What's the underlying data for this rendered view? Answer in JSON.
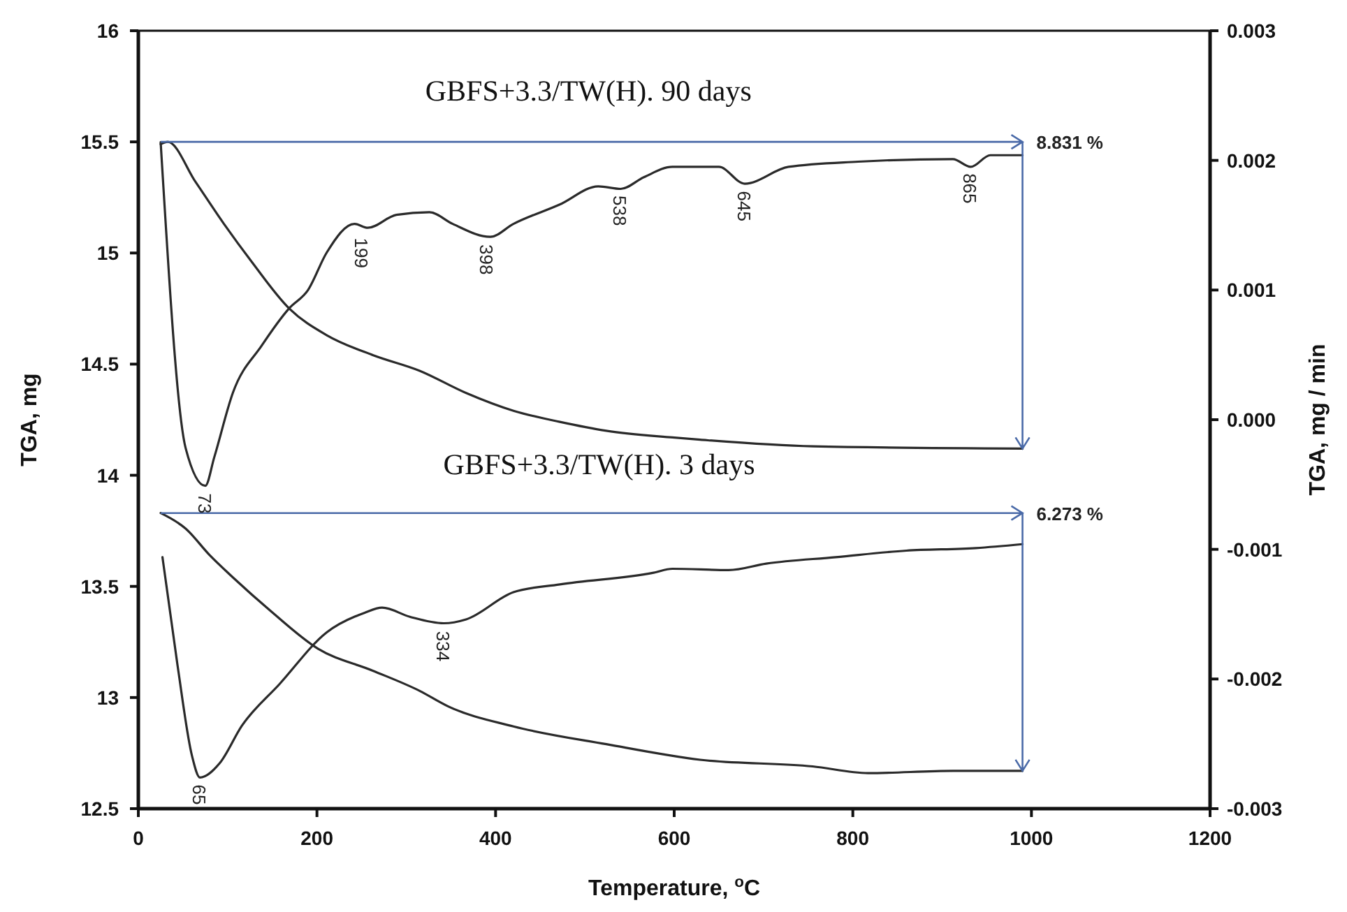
{
  "chart_data": {
    "type": "line",
    "xlabel": "Temperature, $^{o}$C",
    "ylabel": "TGA, mg",
    "y2label": "TGA, mg / min",
    "xlim": [
      0,
      1200
    ],
    "xticks": [
      0,
      200,
      400,
      600,
      800,
      1000,
      1200
    ],
    "ylim": [
      12.5,
      16
    ],
    "yticks": [
      {
        "value": 12.5,
        "label": "12.5"
      },
      {
        "value": 13,
        "label": "13"
      },
      {
        "value": 13.5,
        "label": "13.5"
      },
      {
        "value": 14,
        "label": "14"
      },
      {
        "value": 14.5,
        "label": "14.5"
      },
      {
        "value": 15,
        "label": "15"
      },
      {
        "value": 15.5,
        "label": "15.5"
      },
      {
        "value": 16,
        "label": "16"
      }
    ],
    "y2lim": [
      -0.003,
      0.003
    ],
    "y2ticks": [
      {
        "value": -0.003,
        "label": "-0.003"
      },
      {
        "value": -0.002,
        "label": "-0.002"
      },
      {
        "value": -0.001,
        "label": "-0.001"
      },
      {
        "value": 0,
        "label": "0.000"
      },
      {
        "value": 0.001,
        "label": "0.001"
      },
      {
        "value": 0.002,
        "label": "0.002"
      },
      {
        "value": 0.003,
        "label": "0.003"
      }
    ],
    "series": [
      {
        "color": "#2a2a2a",
        "x": [
          25,
          33,
          64,
          96,
          127,
          169,
          211,
          263,
          315,
          367,
          420,
          472,
          524,
          598,
          629,
          755,
          990
        ],
        "values": [
          15.49,
          15.5,
          15.32,
          15.13,
          14.96,
          14.75,
          14.63,
          14.54,
          14.47,
          14.37,
          14.29,
          14.24,
          14.2,
          14.17,
          14.16,
          14.13,
          14.12
        ]
      },
      {
        "color": "#2a2a2a",
        "axis": "y2",
        "x": [
          25,
          53,
          75,
          85,
          106,
          138,
          169,
          190,
          211,
          242,
          257,
          289,
          326,
          352,
          394,
          420,
          472,
          515,
          540,
          566,
          598,
          650,
          679,
          728,
          806,
          912,
          932,
          954,
          990
        ],
        "values": [
          0.00214,
          -0.00022,
          -0.00051,
          -0.00029,
          0.00021,
          0.00057,
          0.00086,
          0.001,
          0.00129,
          0.00151,
          0.00148,
          0.00158,
          0.0016,
          0.00151,
          0.00141,
          0.00151,
          0.00166,
          0.0018,
          0.00178,
          0.00187,
          0.00195,
          0.00195,
          0.00182,
          0.00195,
          0.00199,
          0.00201,
          0.00195,
          0.00204,
          0.00204
        ]
      },
      {
        "color": "#2a2a2a",
        "x": [
          25,
          53,
          80,
          106,
          148,
          201,
          263,
          315,
          347,
          420,
          524,
          629,
          755,
          817,
          912,
          990
        ],
        "values": [
          13.83,
          13.76,
          13.64,
          13.54,
          13.39,
          13.22,
          13.12,
          13.03,
          12.96,
          12.87,
          12.79,
          12.72,
          12.69,
          12.66,
          12.67,
          12.67
        ]
      },
      {
        "color": "#2a2a2a",
        "axis": "y2",
        "x": [
          27,
          44,
          60,
          69,
          91,
          116,
          158,
          211,
          253,
          273,
          304,
          342,
          367,
          420,
          472,
          577,
          598,
          661,
          703,
          781,
          860,
          938,
          990
        ],
        "values": [
          -0.00106,
          -0.0019,
          -0.00259,
          -0.00276,
          -0.00265,
          -0.00236,
          -0.00204,
          -0.00164,
          -0.00149,
          -0.00145,
          -0.00152,
          -0.00157,
          -0.00154,
          -0.00133,
          -0.00127,
          -0.00118,
          -0.00115,
          -0.00116,
          -0.00111,
          -0.00106,
          -0.00101,
          -0.00099,
          -0.00096
        ]
      }
    ],
    "ref_lines": [
      {
        "axis": "y",
        "value": 15.5,
        "color": "#4a6aa8"
      },
      {
        "axis": "y",
        "value": 13.83,
        "color": "#4a6aa8"
      }
    ],
    "annotations": [
      "GBFS+3.3/TW(H). 90 days",
      "GBFS+3.3/TW(H). 3 days",
      {
        "text": "8.831 %",
        "x": 990,
        "y": 14.12
      },
      {
        "text": "6.273 %",
        "x": 990,
        "y": 12.67
      },
      {
        "text": "73",
        "x": 75,
        "y": 13.95
      },
      {
        "text": "199",
        "x": 250,
        "y": 15.1
      },
      {
        "text": "398",
        "x": 390,
        "y": 15.07
      },
      {
        "text": "538",
        "x": 540,
        "y": 15.29
      },
      {
        "text": "645",
        "x": 679,
        "y": 15.31
      },
      {
        "text": "865",
        "x": 932,
        "y": 15.39
      },
      {
        "text": "65",
        "x": 69,
        "y": 12.64
      },
      {
        "text": "334",
        "x": 342,
        "y": 13.33
      }
    ]
  }
}
